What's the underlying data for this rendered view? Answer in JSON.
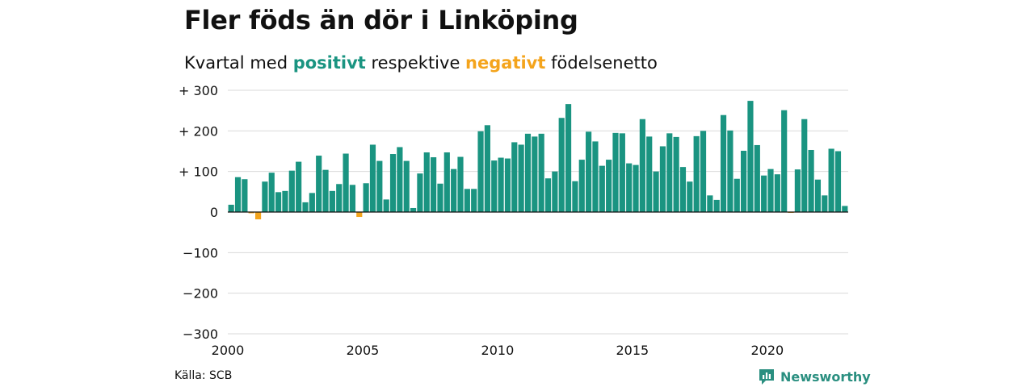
{
  "header": {
    "title": "Fler föds än dör i Linköping",
    "subtitle_prefix": "Kvartal med ",
    "subtitle_positive": "positivt",
    "subtitle_middle": " respektive ",
    "subtitle_negative": "negativt",
    "subtitle_suffix": " födelsenetto"
  },
  "footer": {
    "source": "Källa: SCB",
    "brand": "Newsworthy",
    "brand_icon": "newsworthy-logo-icon"
  },
  "colors": {
    "positive": "#1a9481",
    "negative": "#f4a41c",
    "grid": "#d9d9d9",
    "axis": "#111111",
    "brand": "#2a8f80"
  },
  "chart_data": {
    "type": "bar",
    "title": "Fler föds än dör i Linköping",
    "subtitle": "Kvartal med positivt respektive negativt födelsenetto",
    "xlabel": "",
    "ylabel": "",
    "x_start": 2000,
    "x_end": 2023,
    "ylim": [
      -300,
      300
    ],
    "y_ticks": [
      300,
      200,
      100,
      0,
      -100,
      -200,
      -300
    ],
    "y_tick_labels": [
      "+ 300",
      "+ 200",
      "+ 100",
      "0",
      "−100",
      "−200",
      "−300"
    ],
    "x_ticks": [
      2000,
      2005,
      2010,
      2015,
      2020
    ],
    "x_tick_labels": [
      "2000",
      "2005",
      "2010",
      "2015",
      "2020"
    ],
    "grid": true,
    "legend": "none",
    "series": [
      {
        "values": [
          18,
          86,
          81,
          -3,
          -18,
          75,
          97,
          49,
          52,
          102,
          124,
          24,
          47,
          139,
          104,
          52,
          69,
          144,
          67,
          -12,
          71,
          166,
          126,
          31,
          143,
          160,
          126,
          10,
          95,
          147,
          135,
          70,
          147,
          106,
          136,
          57,
          57,
          199,
          214,
          127,
          134,
          132,
          172,
          166,
          193,
          186,
          193,
          83,
          100,
          232,
          266,
          76,
          129,
          198,
          174,
          114,
          129,
          195,
          194,
          120,
          116,
          229,
          186,
          100,
          162,
          194,
          185,
          111,
          75,
          187,
          200,
          41,
          30,
          239,
          201,
          82,
          151,
          274,
          165,
          90,
          106,
          93,
          251,
          -2,
          105,
          229,
          153,
          80,
          41,
          156,
          150,
          15
        ]
      }
    ]
  }
}
